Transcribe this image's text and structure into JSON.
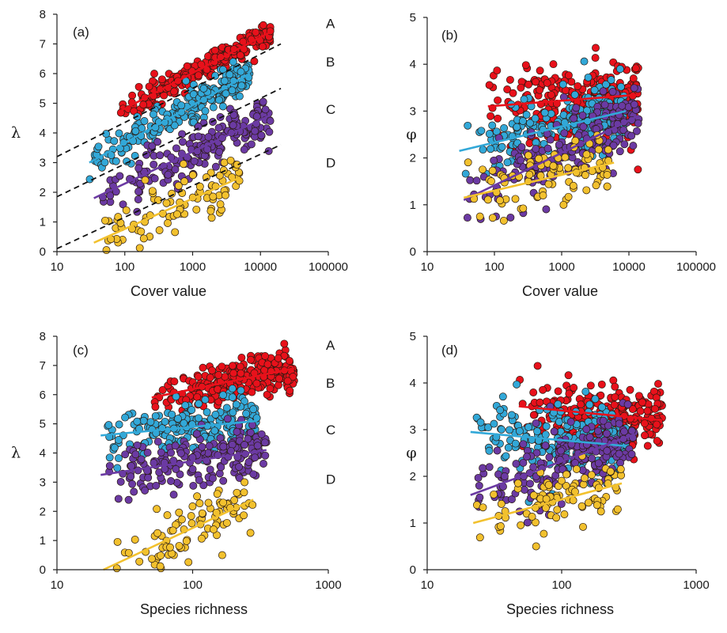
{
  "figure": {
    "colors": {
      "A": "#e8111b",
      "B": "#32a8d8",
      "C": "#6b3aa3",
      "D": "#f2c12e",
      "reference": "#111111",
      "axis": "#222222"
    }
  },
  "chart_data": [
    {
      "panel": "(a)",
      "type": "scatter",
      "xlabel": "Cover value",
      "ylabel": "λ",
      "xscale": "log",
      "xlim": [
        10,
        100000
      ],
      "ylim": [
        0,
        8
      ],
      "xticks": [
        "10",
        "100",
        "1000",
        "10000",
        "100000"
      ],
      "yticks": [
        "0",
        "1",
        "2",
        "3",
        "4",
        "5",
        "6",
        "7",
        "8"
      ],
      "group_labels": [
        {
          "text": "A",
          "y": 7.7
        },
        {
          "text": "B",
          "y": 6.4
        },
        {
          "text": "C",
          "y": 4.8
        },
        {
          "text": "D",
          "y": 3.0
        }
      ],
      "series": [
        {
          "group": "A",
          "color": "#e8111b",
          "n": 230,
          "xrange": [
            80,
            14000
          ],
          "fit": [
            4.7,
            7.4
          ],
          "spread": 0.2
        },
        {
          "group": "B",
          "color": "#32a8d8",
          "n": 230,
          "xrange": [
            30,
            7000
          ],
          "fit": [
            3.0,
            6.0
          ],
          "spread": 0.3
        },
        {
          "group": "C",
          "color": "#6b3aa3",
          "n": 200,
          "xrange": [
            35,
            14000
          ],
          "fit": [
            1.8,
            4.6
          ],
          "spread": 0.4
        },
        {
          "group": "D",
          "color": "#f2c12e",
          "n": 90,
          "xrange": [
            35,
            5000
          ],
          "fit": [
            0.3,
            2.5
          ],
          "spread": 0.45
        }
      ],
      "reference_lines": [
        {
          "x0": 10,
          "y0": 3.2,
          "x1": 20000,
          "y1": 7.0
        },
        {
          "x0": 10,
          "y0": 1.85,
          "x1": 20000,
          "y1": 5.5
        },
        {
          "x0": 10,
          "y0": 0.1,
          "x1": 20000,
          "y1": 3.6
        }
      ]
    },
    {
      "panel": "(b)",
      "type": "scatter",
      "xlabel": "Cover value",
      "ylabel": "φ",
      "xscale": "log",
      "xlim": [
        10,
        100000
      ],
      "ylim": [
        0,
        5
      ],
      "xticks": [
        "10",
        "100",
        "1000",
        "10000",
        "100000"
      ],
      "yticks": [
        "0",
        "1",
        "2",
        "3",
        "4",
        "5"
      ],
      "group_labels": [],
      "series": [
        {
          "group": "A",
          "color": "#e8111b",
          "n": 260,
          "xrange": [
            80,
            14000
          ],
          "fit": [
            3.1,
            3.35
          ],
          "spread": 0.45
        },
        {
          "group": "B",
          "color": "#32a8d8",
          "n": 230,
          "xrange": [
            30,
            9000
          ],
          "fit": [
            2.15,
            3.0
          ],
          "spread": 0.35
        },
        {
          "group": "C",
          "color": "#6b3aa3",
          "n": 200,
          "xrange": [
            35,
            14000
          ],
          "fit": [
            1.1,
            2.9
          ],
          "spread": 0.35
        },
        {
          "group": "D",
          "color": "#f2c12e",
          "n": 90,
          "xrange": [
            35,
            6000
          ],
          "fit": [
            1.15,
            1.9
          ],
          "spread": 0.35
        }
      ],
      "reference_lines": []
    },
    {
      "panel": "(c)",
      "type": "scatter",
      "xlabel": "Species richness",
      "ylabel": "λ",
      "xscale": "log",
      "xlim": [
        10,
        1000
      ],
      "ylim": [
        0,
        8
      ],
      "xticks": [
        "10",
        "100",
        "1000"
      ],
      "yticks": [
        "0",
        "1",
        "2",
        "3",
        "4",
        "5",
        "6",
        "7",
        "8"
      ],
      "group_labels": [
        {
          "text": "A",
          "y": 7.7
        },
        {
          "text": "B",
          "y": 6.4
        },
        {
          "text": "C",
          "y": 4.8
        },
        {
          "text": "D",
          "y": 3.1
        }
      ],
      "series": [
        {
          "group": "A",
          "color": "#e8111b",
          "n": 260,
          "xrange": [
            50,
            560
          ],
          "fit": [
            5.9,
            6.9
          ],
          "spread": 0.35
        },
        {
          "group": "B",
          "color": "#32a8d8",
          "n": 230,
          "xrange": [
            21,
            300
          ],
          "fit": [
            4.6,
            5.1
          ],
          "spread": 0.45
        },
        {
          "group": "C",
          "color": "#6b3aa3",
          "n": 200,
          "xrange": [
            21,
            350
          ],
          "fit": [
            3.25,
            4.1
          ],
          "spread": 0.45
        },
        {
          "group": "D",
          "color": "#f2c12e",
          "n": 90,
          "xrange": [
            22,
            280
          ],
          "fit": [
            0.0,
            2.4
          ],
          "spread": 0.5
        }
      ],
      "reference_lines": []
    },
    {
      "panel": "(d)",
      "type": "scatter",
      "xlabel": "Species richness",
      "ylabel": "φ",
      "xscale": "log",
      "xlim": [
        10,
        1000
      ],
      "ylim": [
        0,
        5
      ],
      "xticks": [
        "10",
        "100",
        "1000"
      ],
      "yticks": [
        "0",
        "1",
        "2",
        "3",
        "4",
        "5"
      ],
      "group_labels": [],
      "series": [
        {
          "group": "A",
          "color": "#e8111b",
          "n": 260,
          "xrange": [
            48,
            560
          ],
          "fit": [
            3.5,
            3.2
          ],
          "spread": 0.35
        },
        {
          "group": "B",
          "color": "#32a8d8",
          "n": 230,
          "xrange": [
            21,
            300
          ],
          "fit": [
            2.95,
            2.65
          ],
          "spread": 0.4
        },
        {
          "group": "C",
          "color": "#6b3aa3",
          "n": 200,
          "xrange": [
            21,
            350
          ],
          "fit": [
            1.6,
            2.9
          ],
          "spread": 0.35
        },
        {
          "group": "D",
          "color": "#f2c12e",
          "n": 90,
          "xrange": [
            22,
            280
          ],
          "fit": [
            1.0,
            1.85
          ],
          "spread": 0.35
        }
      ],
      "reference_lines": []
    }
  ]
}
